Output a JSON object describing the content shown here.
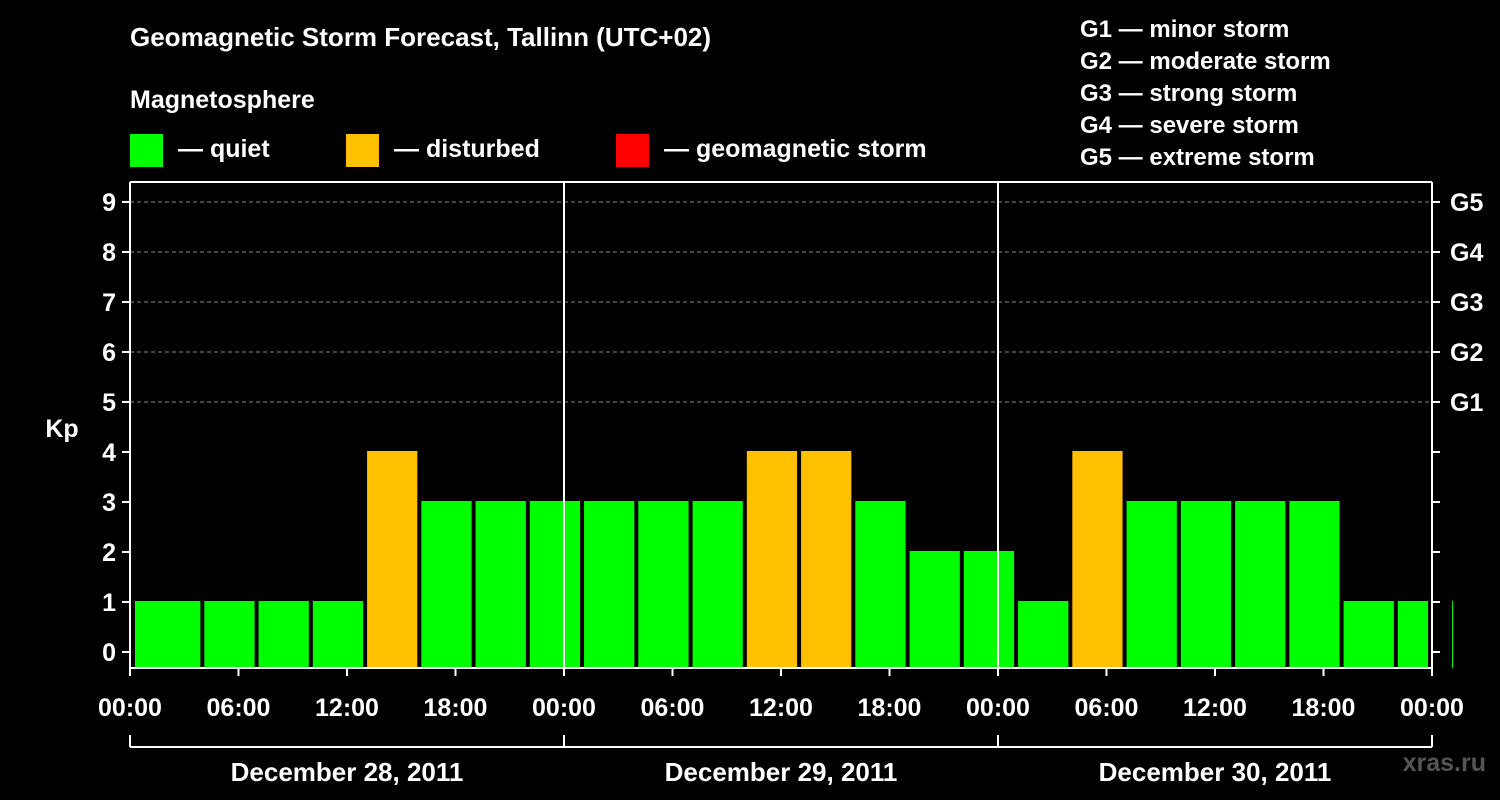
{
  "title": "Geomagnetic Storm Forecast, Tallinn (UTC+02)",
  "legend": {
    "heading": "Magnetosphere",
    "items": [
      {
        "label": "— quiet",
        "color": "#00ff00"
      },
      {
        "label": "— disturbed",
        "color": "#ffc000"
      },
      {
        "label": "— geomagnetic storm",
        "color": "#ff0000"
      }
    ]
  },
  "g_scale": [
    "G1 — minor storm",
    "G2 — moderate storm",
    "G3 — strong storm",
    "G4 — severe storm",
    "G5 — extreme storm"
  ],
  "watermark": "xras.ru",
  "chart_data": {
    "type": "bar",
    "title": "Geomagnetic Storm Forecast, Tallinn (UTC+02)",
    "ylabel": "Kp",
    "ylim": [
      0,
      9
    ],
    "y_ticks": [
      0,
      1,
      2,
      3,
      4,
      5,
      6,
      7,
      8,
      9
    ],
    "right_axis_labels": [
      {
        "kp": 5,
        "label": "G1"
      },
      {
        "kp": 6,
        "label": "G2"
      },
      {
        "kp": 7,
        "label": "G3"
      },
      {
        "kp": 8,
        "label": "G4"
      },
      {
        "kp": 9,
        "label": "G5"
      }
    ],
    "x_range_hours": [
      0,
      72
    ],
    "x_tick_labels": [
      "00:00",
      "06:00",
      "12:00",
      "18:00",
      "00:00",
      "06:00",
      "12:00",
      "18:00",
      "00:00",
      "06:00",
      "12:00",
      "18:00",
      "00:00"
    ],
    "days": [
      "December 28, 2011",
      "December 29, 2011",
      "December 30, 2011"
    ],
    "grid": "horizontal dashed at Kp 5–9",
    "colors": {
      "quiet": "#00ff00",
      "disturbed": "#ffc000",
      "storm": "#ff0000"
    },
    "values": [
      1,
      1,
      1,
      1,
      4,
      3,
      3,
      3,
      3,
      3,
      3,
      4,
      4,
      3,
      2,
      2,
      1,
      4,
      3,
      3,
      3,
      3,
      1,
      1,
      1
    ]
  }
}
